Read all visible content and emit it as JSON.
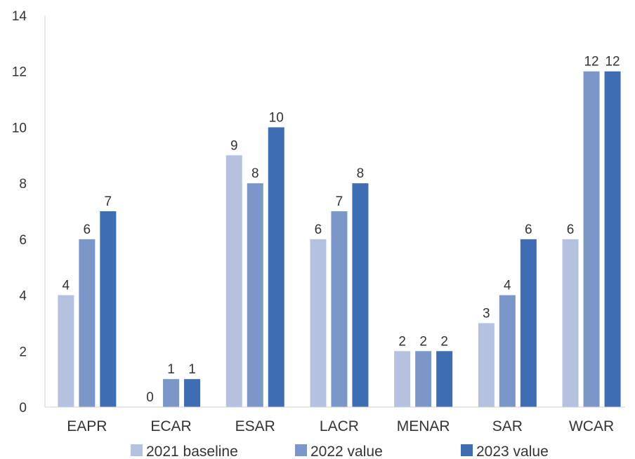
{
  "chart_data": {
    "type": "bar",
    "categories": [
      "EAPR",
      "ECAR",
      "ESAR",
      "LACR",
      "MENAR",
      "SAR",
      "WCAR"
    ],
    "series": [
      {
        "name": "2021 baseline",
        "color": "#b4c2e0",
        "values": [
          4,
          0,
          9,
          6,
          2,
          3,
          6
        ]
      },
      {
        "name": "2022 value",
        "color": "#7b96c9",
        "values": [
          6,
          1,
          8,
          7,
          2,
          4,
          12
        ]
      },
      {
        "name": "2023 value",
        "color": "#3f6db3",
        "values": [
          7,
          1,
          10,
          8,
          2,
          6,
          12
        ]
      }
    ],
    "ylim": [
      0,
      14
    ],
    "yticks": [
      0,
      2,
      4,
      6,
      8,
      10,
      12,
      14
    ],
    "grid": false,
    "legend": "bottom",
    "data_labels": true
  }
}
